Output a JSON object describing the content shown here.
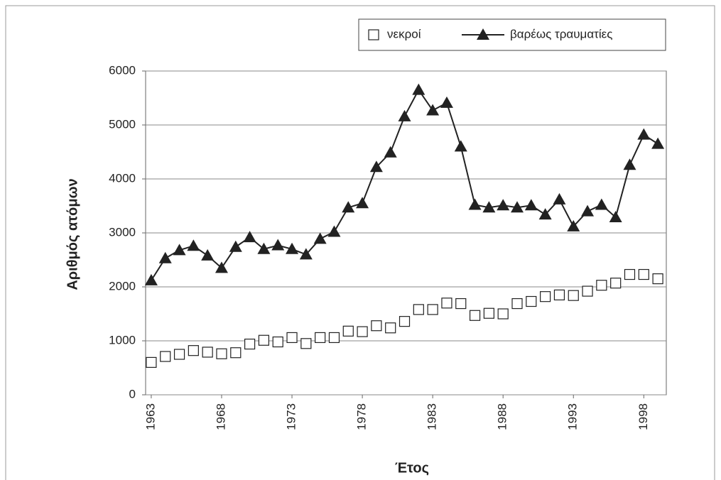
{
  "chart_data": {
    "type": "line",
    "xlabel": "Έτος",
    "ylabel": "Αριθμός ατόμων",
    "x": [
      1963,
      1964,
      1965,
      1966,
      1967,
      1968,
      1969,
      1970,
      1971,
      1972,
      1973,
      1974,
      1975,
      1976,
      1977,
      1978,
      1979,
      1980,
      1981,
      1982,
      1983,
      1984,
      1985,
      1986,
      1987,
      1988,
      1989,
      1990,
      1991,
      1992,
      1993,
      1994,
      1995,
      1996,
      1997,
      1998,
      1999
    ],
    "series": [
      {
        "name": "νεκροί",
        "color": "#222222",
        "marker": "square",
        "values": [
          600,
          710,
          750,
          820,
          790,
          760,
          780,
          940,
          1010,
          980,
          1060,
          950,
          1060,
          1060,
          1180,
          1170,
          1280,
          1240,
          1360,
          1580,
          1580,
          1700,
          1690,
          1470,
          1510,
          1500,
          1690,
          1730,
          1820,
          1850,
          1840,
          1920,
          2030,
          2070,
          2230,
          2230,
          2150
        ]
      },
      {
        "name": "βαρέως τραυματίες",
        "color": "#222222",
        "marker": "triangle",
        "values": [
          2120,
          2530,
          2680,
          2760,
          2580,
          2350,
          2740,
          2920,
          2700,
          2770,
          2700,
          2600,
          2890,
          3020,
          3470,
          3550,
          4220,
          4490,
          5160,
          5650,
          5270,
          5410,
          4600,
          3520,
          3470,
          3510,
          3470,
          3510,
          3340,
          3620,
          3120,
          3400,
          3520,
          3290,
          4260,
          4820,
          4650
        ]
      }
    ],
    "xlim": [
      1962.6,
      1999.6
    ],
    "xticks": [
      1963,
      1968,
      1973,
      1978,
      1983,
      1988,
      1993,
      1998
    ],
    "ylim": [
      0,
      6000
    ],
    "yticks": [
      0,
      1000,
      2000,
      3000,
      4000,
      5000,
      6000
    ],
    "grid": true,
    "legend": "top-right"
  }
}
